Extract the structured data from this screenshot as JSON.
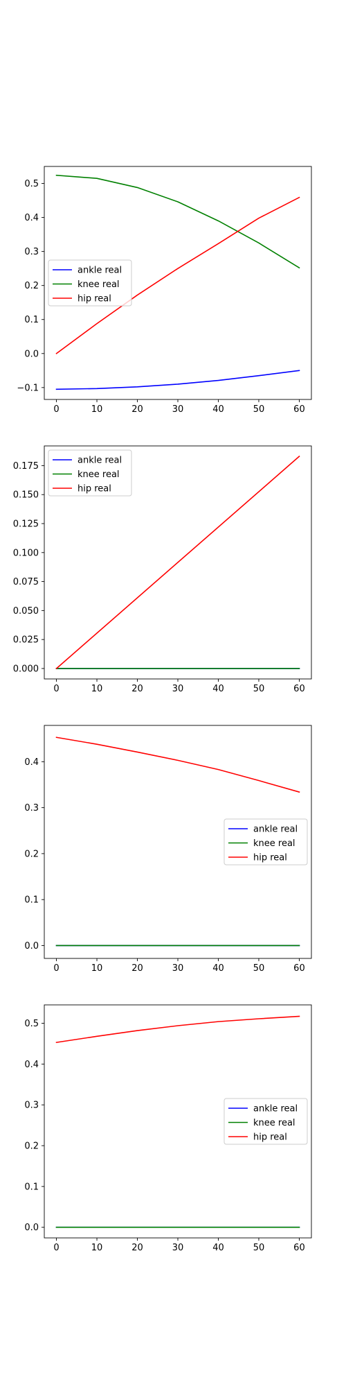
{
  "colors": {
    "ankle": "#0000ff",
    "knee": "#008000",
    "hip": "#ff0000"
  },
  "chart_data": [
    {
      "type": "line",
      "xlim": [
        -3,
        63
      ],
      "ylim": [
        -0.135,
        0.55
      ],
      "xticks": [
        0,
        10,
        20,
        30,
        40,
        50,
        60
      ],
      "yticks": [
        -0.1,
        0.0,
        0.1,
        0.2,
        0.3,
        0.4,
        0.5
      ],
      "ytick_labels": [
        "−0.1",
        "0.0",
        "0.1",
        "0.2",
        "0.3",
        "0.4",
        "0.5"
      ],
      "legend_position": "center-left",
      "series": [
        {
          "name": "ankle real",
          "color": "#0000ff",
          "x": [
            0,
            10,
            20,
            30,
            40,
            50,
            60
          ],
          "y": [
            -0.105,
            -0.103,
            -0.098,
            -0.09,
            -0.079,
            -0.065,
            -0.05
          ]
        },
        {
          "name": "knee real",
          "color": "#008000",
          "x": [
            0,
            10,
            20,
            30,
            40,
            50,
            60
          ],
          "y": [
            0.524,
            0.515,
            0.488,
            0.446,
            0.39,
            0.325,
            0.252
          ]
        },
        {
          "name": "hip real",
          "color": "#ff0000",
          "x": [
            0,
            10,
            20,
            30,
            40,
            50,
            60
          ],
          "y": [
            0.0,
            0.088,
            0.172,
            0.25,
            0.323,
            0.398,
            0.459
          ]
        }
      ]
    },
    {
      "type": "line",
      "xlim": [
        -3,
        63
      ],
      "ylim": [
        -0.009,
        0.192
      ],
      "xticks": [
        0,
        10,
        20,
        30,
        40,
        50,
        60
      ],
      "yticks": [
        0.0,
        0.025,
        0.05,
        0.075,
        0.1,
        0.125,
        0.15,
        0.175
      ],
      "ytick_labels": [
        "0.000",
        "0.025",
        "0.050",
        "0.075",
        "0.100",
        "0.125",
        "0.150",
        "0.175"
      ],
      "legend_position": "upper-left",
      "series": [
        {
          "name": "ankle real",
          "color": "#0000ff",
          "x": [
            0,
            60
          ],
          "y": [
            0.0,
            0.0
          ]
        },
        {
          "name": "knee real",
          "color": "#008000",
          "x": [
            0,
            60
          ],
          "y": [
            0.0,
            0.0
          ]
        },
        {
          "name": "hip real",
          "color": "#ff0000",
          "x": [
            0,
            60
          ],
          "y": [
            0.0,
            0.183
          ]
        }
      ]
    },
    {
      "type": "line",
      "xlim": [
        -3,
        63
      ],
      "ylim": [
        -0.028,
        0.479
      ],
      "xticks": [
        0,
        10,
        20,
        30,
        40,
        50,
        60
      ],
      "yticks": [
        0.0,
        0.1,
        0.2,
        0.3,
        0.4
      ],
      "ytick_labels": [
        "0.0",
        "0.1",
        "0.2",
        "0.3",
        "0.4"
      ],
      "legend_position": "center-right",
      "series": [
        {
          "name": "ankle real",
          "color": "#0000ff",
          "x": [
            0,
            60
          ],
          "y": [
            0.0,
            0.0
          ]
        },
        {
          "name": "knee real",
          "color": "#008000",
          "x": [
            0,
            60
          ],
          "y": [
            0.0,
            0.0
          ]
        },
        {
          "name": "hip real",
          "color": "#ff0000",
          "x": [
            0,
            10,
            20,
            30,
            40,
            50,
            60
          ],
          "y": [
            0.453,
            0.438,
            0.421,
            0.403,
            0.383,
            0.359,
            0.334
          ]
        }
      ]
    },
    {
      "type": "line",
      "xlim": [
        -3,
        63
      ],
      "ylim": [
        -0.026,
        0.545
      ],
      "xticks": [
        0,
        10,
        20,
        30,
        40,
        50,
        60
      ],
      "yticks": [
        0.0,
        0.1,
        0.2,
        0.3,
        0.4,
        0.5
      ],
      "ytick_labels": [
        "0.0",
        "0.1",
        "0.2",
        "0.3",
        "0.4",
        "0.5"
      ],
      "legend_position": "center-right",
      "series": [
        {
          "name": "ankle real",
          "color": "#0000ff",
          "x": [
            0,
            60
          ],
          "y": [
            0.0,
            0.0
          ]
        },
        {
          "name": "knee real",
          "color": "#008000",
          "x": [
            0,
            60
          ],
          "y": [
            0.0,
            0.0
          ]
        },
        {
          "name": "hip real",
          "color": "#ff0000",
          "x": [
            0,
            10,
            20,
            30,
            40,
            50,
            60
          ],
          "y": [
            0.453,
            0.468,
            0.482,
            0.494,
            0.504,
            0.511,
            0.517
          ]
        }
      ]
    }
  ]
}
